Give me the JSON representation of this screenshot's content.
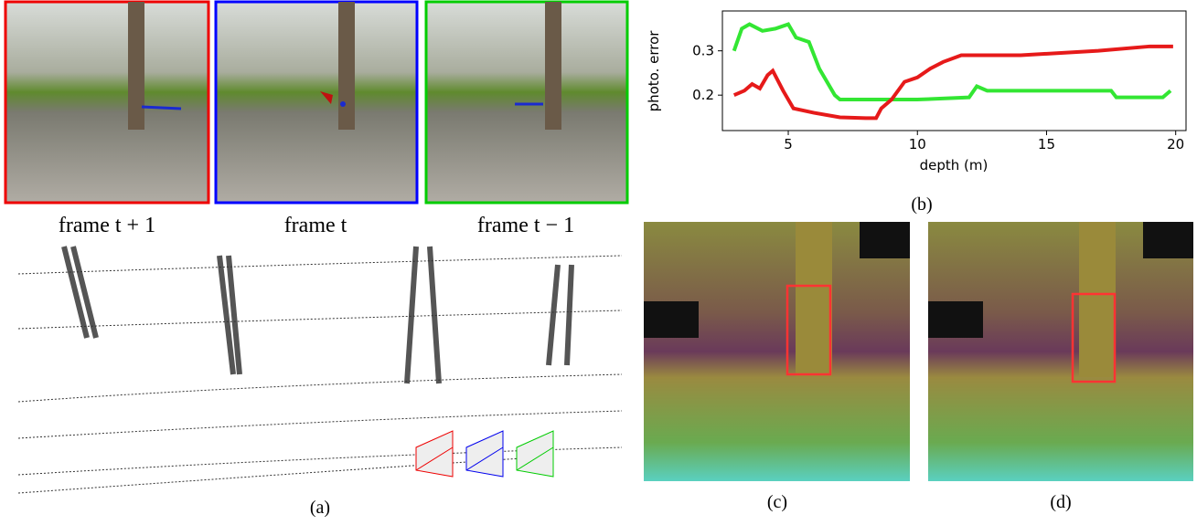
{
  "captions": {
    "frame_next": "frame t + 1",
    "frame_cur": "frame t",
    "frame_prev": "frame t − 1",
    "a": "(a)",
    "b": "(b)",
    "c": "(c)",
    "d": "(d)"
  },
  "chart_data": {
    "type": "line",
    "ylabel": "photo. error",
    "xlabel": "depth (m)",
    "xlim": [
      2.45,
      20.4
    ],
    "xticks": [
      5,
      10,
      15,
      20
    ],
    "ylim": [
      0.12,
      0.39
    ],
    "yticks": [
      0.2,
      0.3
    ],
    "series": [
      {
        "color": "#33e633",
        "x": [
          2.9,
          3.2,
          3.5,
          4.0,
          4.5,
          5.0,
          5.3,
          5.8,
          6.2,
          6.8,
          7.0,
          8,
          10,
          12,
          12.3,
          12.7,
          17.5,
          17.7,
          19.5,
          19.8
        ],
        "values": [
          0.3,
          0.35,
          0.36,
          0.345,
          0.35,
          0.36,
          0.33,
          0.32,
          0.26,
          0.2,
          0.19,
          0.19,
          0.19,
          0.195,
          0.22,
          0.21,
          0.21,
          0.195,
          0.195,
          0.21
        ]
      },
      {
        "color": "#e61a1a",
        "x": [
          2.9,
          3.3,
          3.6,
          3.9,
          4.2,
          4.4,
          4.8,
          5.2,
          6,
          7,
          8,
          8.4,
          8.6,
          9,
          9.5,
          10,
          10.5,
          11,
          11.7,
          14,
          17,
          19,
          19.9
        ],
        "values": [
          0.2,
          0.21,
          0.225,
          0.215,
          0.245,
          0.255,
          0.21,
          0.17,
          0.16,
          0.15,
          0.148,
          0.148,
          0.17,
          0.19,
          0.23,
          0.24,
          0.26,
          0.275,
          0.29,
          0.29,
          0.3,
          0.31,
          0.31
        ]
      }
    ]
  }
}
